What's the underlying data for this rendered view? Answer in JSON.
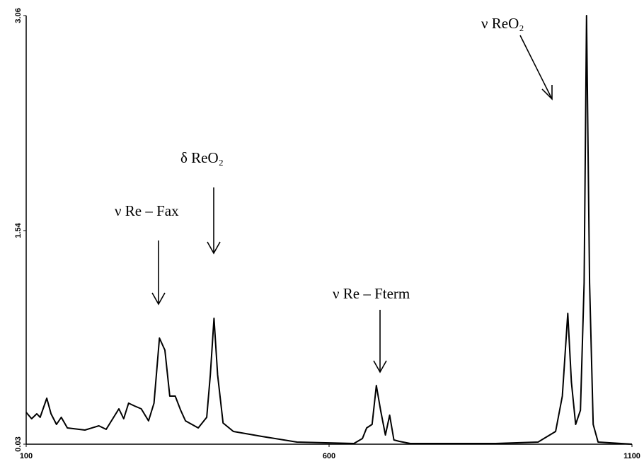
{
  "chart_data": {
    "type": "line",
    "x": [
      100,
      109,
      117.5,
      123,
      134,
      141,
      150,
      158,
      168,
      197,
      220,
      232,
      253,
      261,
      269,
      279,
      290,
      302,
      311,
      320,
      329,
      337,
      346,
      355,
      363,
      384,
      398,
      404,
      410,
      416,
      425,
      442,
      489,
      547,
      641,
      655,
      662,
      671,
      678,
      685,
      693,
      700,
      707,
      716,
      734,
      875,
      945,
      974,
      985,
      994,
      1000,
      1007,
      1015,
      1021,
      1025,
      1030,
      1036,
      1044,
      1100
    ],
    "series": [
      {
        "color": "#000000",
        "values": [
          0.255,
          0.21,
          0.245,
          0.22,
          0.355,
          0.245,
          0.17,
          0.22,
          0.145,
          0.13,
          0.16,
          0.135,
          0.28,
          0.21,
          0.32,
          0.3,
          0.28,
          0.195,
          0.32,
          0.78,
          0.695,
          0.37,
          0.37,
          0.27,
          0.195,
          0.145,
          0.22,
          0.52,
          0.92,
          0.52,
          0.18,
          0.12,
          0.085,
          0.045,
          0.035,
          0.07,
          0.145,
          0.17,
          0.445,
          0.27,
          0.095,
          0.235,
          0.06,
          0.05,
          0.035,
          0.035,
          0.045,
          0.12,
          0.37,
          0.955,
          0.47,
          0.17,
          0.27,
          1.17,
          3.06,
          1.17,
          0.17,
          0.045,
          0.03
        ]
      }
    ],
    "xlim": [
      100,
      1100
    ],
    "xticks": [
      100,
      600,
      1100
    ],
    "ylim": [
      0.03,
      3.06
    ],
    "yticks": [
      0.03,
      1.54,
      3.06
    ],
    "annotations": [
      "ν ReO₂",
      "δ ReO₂",
      "ν Re – Fax",
      "ν Re –  Fterm"
    ]
  }
}
